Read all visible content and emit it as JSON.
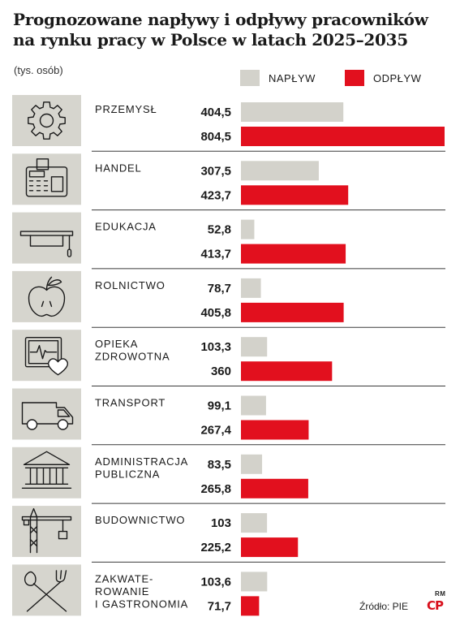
{
  "title_line1": "Prognozowane napływy i odpływy pracowników",
  "title_line2": "na rynku pracy w Polsce w latach 2025–2035",
  "unit": "(tys. osób)",
  "source": "Źródło: PIE",
  "credit": "RM",
  "logo": "CP",
  "chart_data": {
    "type": "bar",
    "orientation": "horizontal",
    "xlim": [
      0,
      804.5
    ],
    "grid": false,
    "legend_position": "top-right",
    "series": [
      {
        "name": "NAPŁYW",
        "color": "#d3d2cb",
        "values": [
          404.5,
          307.5,
          52.8,
          78.7,
          103.3,
          99.1,
          83.5,
          103,
          103.6
        ],
        "labels": [
          "404,5",
          "307,5",
          "52,8",
          "78,7",
          "103,3",
          "99,1",
          "83,5",
          "103",
          "103,6"
        ]
      },
      {
        "name": "ODPŁYW",
        "color": "#e2101e",
        "values": [
          804.5,
          423.7,
          413.7,
          405.8,
          360,
          267.4,
          265.8,
          225.2,
          71.7
        ],
        "labels": [
          "804,5",
          "423,7",
          "413,7",
          "405,8",
          "360",
          "267,4",
          "265,8",
          "225,2",
          "71,7"
        ]
      }
    ],
    "categories": [
      {
        "lines": [
          "PRZEMYSŁ"
        ],
        "icon": "gear-icon"
      },
      {
        "lines": [
          "HANDEL"
        ],
        "icon": "cash-register-icon"
      },
      {
        "lines": [
          "EDUKACJA"
        ],
        "icon": "graduation-cap-icon"
      },
      {
        "lines": [
          "ROLNICTWO"
        ],
        "icon": "apple-icon"
      },
      {
        "lines": [
          "OPIEKA",
          "ZDROWOTNA"
        ],
        "icon": "heart-monitor-icon"
      },
      {
        "lines": [
          "TRANSPORT"
        ],
        "icon": "van-icon"
      },
      {
        "lines": [
          "ADMINISTRACJA",
          "PUBLICZNA"
        ],
        "icon": "government-building-icon"
      },
      {
        "lines": [
          "BUDOWNICTWO"
        ],
        "icon": "crane-icon"
      },
      {
        "lines": [
          "ZAKWATE-",
          "ROWANIE",
          "I GASTRONOMIA"
        ],
        "icon": "cutlery-icon"
      }
    ]
  }
}
